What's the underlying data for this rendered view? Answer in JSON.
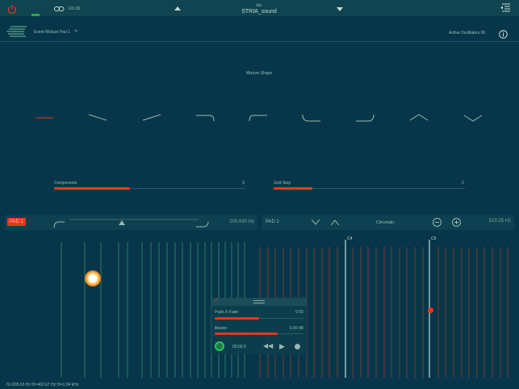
{
  "header": {
    "tempo": "120.00",
    "preset_bank": "eu",
    "preset_name": "STRIA_sound",
    "power_color": "#e8371f"
  },
  "sub": {
    "event_title": "Event Mixture Pad 1",
    "active_oscillators": "Active Oscillators 90"
  },
  "mixture": {
    "title": "Mixture Shape",
    "shapes": [
      "flat",
      "ramp-down",
      "ramp-up",
      "step-down",
      "step-up",
      "dip-left",
      "dip-right",
      "peak",
      "valley"
    ]
  },
  "components": {
    "label": "Components",
    "value": "3",
    "fill": 0.4
  },
  "grid_step": {
    "label": "Grid Step",
    "value": "2",
    "fill": 0.2
  },
  "pad1": {
    "label": "PAD 1",
    "freq": "205.630 Hz",
    "slider": 0.5
  },
  "pad2": {
    "label": "PAD 2",
    "mode": "Chromatic",
    "freq": "523.25 Hz"
  },
  "keyboard": {
    "c4": "C4",
    "c5": "C5"
  },
  "mixer": {
    "xfade_label": "Pads X-Fade",
    "xfade_value": "0.50",
    "xfade_fill": 0.5,
    "master_label": "Master",
    "master_value": "0.00 dB",
    "master_fill": 0.71,
    "time": "00:00.0"
  },
  "footer": {
    "freqs": "f1=205.63 Hz f2=462.67 Hz f3=1.04 kHz"
  },
  "accent": "#e8371f"
}
